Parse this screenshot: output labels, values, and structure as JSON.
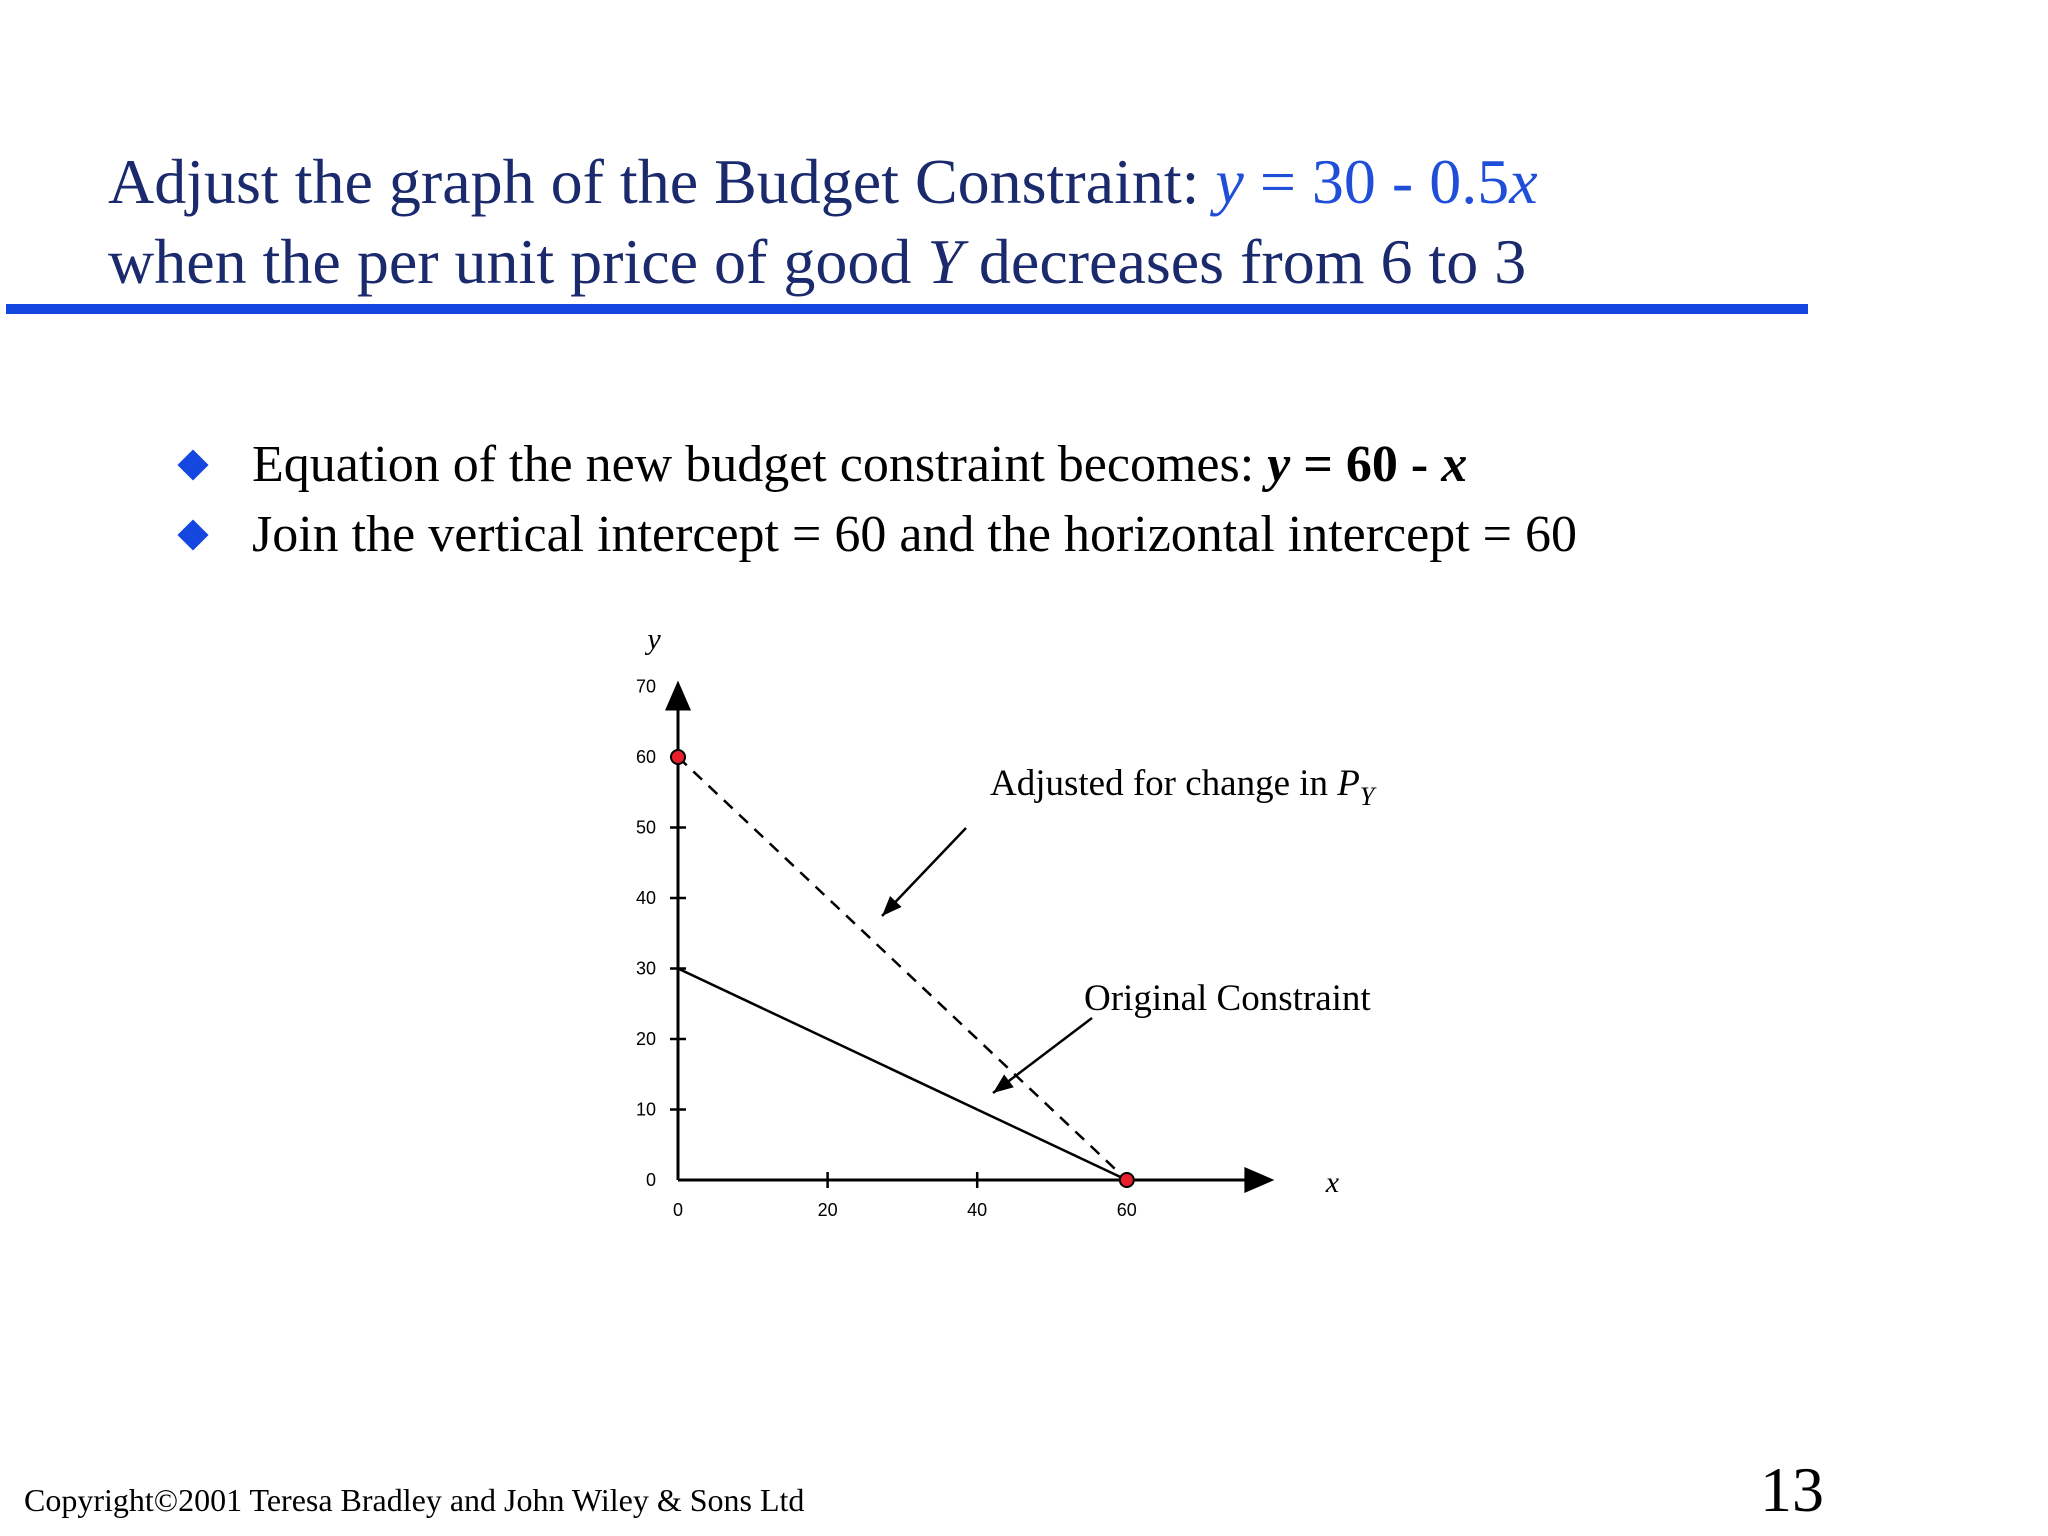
{
  "title": {
    "line1_text": "Adjust the graph of the Budget Constraint: ",
    "line1_eq_y": "y",
    "line1_eq_rest": " =  30 - 0.5",
    "line1_eq_x": "x",
    "line2_a": "when the per unit price of good ",
    "line2_Y": "Y",
    "line2_b": " decreases from 6 to 3"
  },
  "bullets": [
    {
      "text": "Equation of the new budget constraint becomes: ",
      "eq_y": "y",
      "eq_mid": " = 60 - ",
      "eq_x": "x"
    },
    {
      "text": "Join the vertical intercept = 60 and the horizontal intercept = 60"
    }
  ],
  "chart_data": {
    "type": "line",
    "xlabel": "x",
    "ylabel": "y",
    "xlim": [
      0,
      80
    ],
    "ylim": [
      0,
      70
    ],
    "x_ticks": [
      0,
      20,
      40,
      60
    ],
    "y_ticks": [
      0,
      10,
      20,
      30,
      40,
      50,
      60,
      70
    ],
    "grid": false,
    "series": [
      {
        "style": "solid",
        "points": [
          [
            0,
            30
          ],
          [
            60,
            0
          ]
        ]
      },
      {
        "style": "dashed",
        "points": [
          [
            0,
            60
          ],
          [
            60,
            0
          ]
        ]
      }
    ],
    "markers": [
      {
        "x": 0,
        "y": 60,
        "color": "#e8202a"
      },
      {
        "x": 60,
        "y": 0,
        "color": "#e8202a"
      }
    ],
    "annotations": [
      {
        "text": "Adjusted for change in ",
        "italic_part": "P",
        "subscript": "Y"
      },
      {
        "text": "Original Constraint"
      }
    ]
  },
  "footer": {
    "copyright": "Copyright©2001 Teresa Bradley and John Wiley & Sons Ltd",
    "page_number": "13"
  }
}
